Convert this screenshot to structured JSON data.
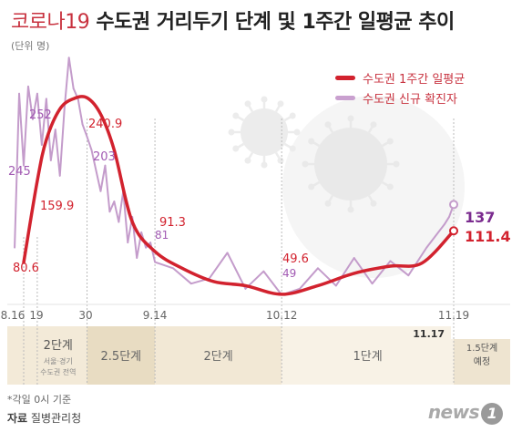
{
  "title": {
    "prefix": "코로나19",
    "main": "수도권 거리두기 단계 및",
    "bold": "1주간 일평균 추이"
  },
  "unit_label": "(단위 명)",
  "legend": {
    "avg": {
      "label": "수도권 1주간 일평균",
      "color": "#d2222e"
    },
    "daily": {
      "label": "수도권 신규 확진자",
      "color": "#c9a0cf"
    }
  },
  "colors": {
    "avg": "#d2222e",
    "daily": "#c49ccb",
    "annot": "#d2222e",
    "last_daily": "#7b2c8f"
  },
  "chart_data": {
    "type": "line",
    "title": "코로나19 수도권 거리두기 단계 및 1주간 일평균 추이",
    "xlabel": "",
    "ylabel": "",
    "ylim": [
      30,
      290
    ],
    "x_ticks": [
      "8.16",
      "19",
      "30",
      "9.14",
      "10.12",
      "11.19"
    ],
    "series": [
      {
        "name": "수도권 1주간 일평균",
        "x": [
          "8.16",
          "8.19",
          "8.21",
          "8.24",
          "8.27",
          "8.30",
          "9.2",
          "9.5",
          "9.9",
          "9.14",
          "9.20",
          "9.27",
          "10.4",
          "10.12",
          "10.20",
          "10.28",
          "11.5",
          "11.12",
          "11.19"
        ],
        "values": [
          80.6,
          159.9,
          200,
          230,
          240,
          240.9,
          225,
          190,
          120,
          91.3,
          75,
          62,
          58,
          49.6,
          58,
          70,
          77,
          80,
          111.4
        ]
      },
      {
        "name": "수도권 신규 확진자",
        "x": [
          "8.14",
          "8.15",
          "8.16",
          "8.17",
          "8.18",
          "8.19",
          "8.20",
          "8.21",
          "8.22",
          "8.23",
          "8.24",
          "8.25",
          "8.26",
          "8.27",
          "8.28",
          "8.29",
          "8.30",
          "8.31",
          "9.1",
          "9.2",
          "9.3",
          "9.4",
          "9.5",
          "9.6",
          "9.7",
          "9.8",
          "9.9",
          "9.10",
          "9.11",
          "9.12",
          "9.13",
          "9.14",
          "9.18",
          "9.22",
          "9.26",
          "9.30",
          "10.4",
          "10.8",
          "10.12",
          "10.16",
          "10.20",
          "10.24",
          "10.28",
          "11.1",
          "11.5",
          "11.9",
          "11.13",
          "11.17",
          "11.18",
          "11.19"
        ],
        "values": [
          95,
          245,
          175,
          252,
          220,
          245,
          195,
          240,
          180,
          210,
          165,
          230,
          280,
          250,
          240,
          215,
          203,
          190,
          170,
          150,
          175,
          130,
          140,
          120,
          150,
          100,
          125,
          85,
          110,
          95,
          100,
          81,
          75,
          60,
          65,
          90,
          55,
          72,
          49,
          55,
          75,
          58,
          85,
          60,
          82,
          68,
          95,
          118,
          125,
          137
        ]
      }
    ],
    "annotations": [
      {
        "text": "245",
        "series": "daily"
      },
      {
        "text": "252",
        "series": "daily"
      },
      {
        "text": "240.9",
        "series": "avg"
      },
      {
        "text": "203",
        "series": "daily"
      },
      {
        "text": "159.9",
        "series": "avg"
      },
      {
        "text": "80.6",
        "series": "avg"
      },
      {
        "text": "91.3",
        "series": "avg"
      },
      {
        "text": "81",
        "series": "daily"
      },
      {
        "text": "49.6",
        "series": "avg"
      },
      {
        "text": "49",
        "series": "daily"
      },
      {
        "text": "137",
        "series": "daily"
      },
      {
        "text": "111.4",
        "series": "avg"
      }
    ]
  },
  "stages": [
    {
      "label": "2단계",
      "sub": "서울·경기 수도권 전역"
    },
    {
      "label": "2.5단계"
    },
    {
      "label": "2단계"
    },
    {
      "label": "1단계"
    },
    {
      "label": "1.5단계 예정"
    }
  ],
  "stage_marker_date": "11.17",
  "footnote": "*각일 0시 기준",
  "source": {
    "prefix": "자료",
    "text": "질병관리청"
  },
  "logo": {
    "text": "news",
    "num": "1"
  }
}
